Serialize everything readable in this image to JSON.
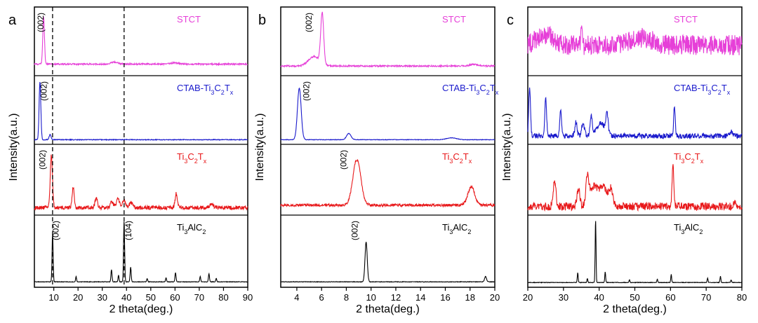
{
  "chart_data": [
    {
      "type": "line",
      "panel_label": "a",
      "xlabel": "2 theta(deg.)",
      "ylabel": "Intensity(a.u.)",
      "xlim": [
        2,
        90
      ],
      "xticks": [
        10,
        20,
        30,
        40,
        50,
        60,
        70,
        80,
        90
      ],
      "grid": false,
      "dashed_lines_x": [
        9.5,
        39
      ],
      "series": [
        {
          "name": "STCT",
          "color": "#e63fd8",
          "label_html": "STCT",
          "baseline": 0.15,
          "peaks": [
            [
              5.8,
              0.75,
              0.35
            ],
            [
              35,
              0.03,
              1.5
            ],
            [
              60,
              0.02,
              1.5
            ]
          ],
          "noise": 0.012
        },
        {
          "name": "CTAB-Ti3C2Tx",
          "color": "#1a1acc",
          "label_html": "CTAB-Ti<tspan baseline-shift='sub' font-size='9'>3</tspan>C<tspan baseline-shift='sub' font-size='9'>2</tspan>T<tspan baseline-shift='sub' font-size='9'>x</tspan>",
          "baseline": 0.04,
          "peaks": [
            [
              4.3,
              0.92,
              0.35
            ],
            [
              8.5,
              0.08,
              0.4
            ]
          ],
          "noise": 0.006
        },
        {
          "name": "Ti3C2Tx",
          "color": "#e8181a",
          "label_html": "Ti<tspan baseline-shift='sub' font-size='9'>3</tspan>C<tspan baseline-shift='sub' font-size='9'>2</tspan>T<tspan baseline-shift='sub' font-size='9'>x</tspan>",
          "baseline": 0.08,
          "peaks": [
            [
              9.0,
              0.8,
              0.45
            ],
            [
              18,
              0.32,
              0.45
            ],
            [
              27.5,
              0.16,
              0.5
            ],
            [
              34,
              0.1,
              0.6
            ],
            [
              36.5,
              0.14,
              0.6
            ],
            [
              39,
              0.12,
              0.6
            ],
            [
              42,
              0.08,
              0.8
            ],
            [
              60.5,
              0.22,
              0.45
            ],
            [
              75,
              0.05,
              0.8
            ]
          ],
          "noise": 0.03
        },
        {
          "name": "Ti3AlC2",
          "color": "#000000",
          "label_html": "Ti<tspan baseline-shift='sub' font-size='9'>3</tspan>AlC<tspan baseline-shift='sub' font-size='9'>2</tspan>",
          "baseline": 0.05,
          "peaks": [
            [
              9.5,
              0.72,
              0.22
            ],
            [
              19.2,
              0.08,
              0.2
            ],
            [
              33.8,
              0.18,
              0.22
            ],
            [
              36.7,
              0.1,
              0.2
            ],
            [
              39,
              0.92,
              0.22
            ],
            [
              41.7,
              0.22,
              0.22
            ],
            [
              48.5,
              0.05,
              0.2
            ],
            [
              56.3,
              0.06,
              0.2
            ],
            [
              60.2,
              0.14,
              0.22
            ],
            [
              70.4,
              0.08,
              0.2
            ],
            [
              74,
              0.12,
              0.22
            ],
            [
              77,
              0.05,
              0.2
            ]
          ],
          "noise": 0.004
        }
      ],
      "annotations": [
        {
          "text": "(002)",
          "series": 0,
          "x": 5.8
        },
        {
          "text": "(002)",
          "series": 1,
          "x": 7.0
        },
        {
          "text": "(002)",
          "series": 2,
          "x": 6.5
        },
        {
          "text": "(002)",
          "series": 3,
          "x": 12
        },
        {
          "text": "(104)",
          "series": 3,
          "x": 42
        }
      ]
    },
    {
      "type": "line",
      "panel_label": "b",
      "xlabel": "2 theta(deg.)",
      "ylabel": "Intensity(a.u.)",
      "xlim": [
        2.7,
        20
      ],
      "xticks": [
        4,
        6,
        8,
        10,
        12,
        14,
        16,
        18,
        20
      ],
      "grid": false,
      "series": [
        {
          "name": "STCT",
          "color": "#e63fd8",
          "label_html": "STCT",
          "baseline": 0.12,
          "peaks": [
            [
              6.05,
              0.8,
              0.12
            ],
            [
              5.4,
              0.15,
              0.45
            ],
            [
              18.3,
              0.03,
              0.3
            ]
          ],
          "noise": 0.012
        },
        {
          "name": "CTAB-Ti3C2Tx",
          "color": "#1a1acc",
          "label_html": "CTAB-Ti<tspan baseline-shift='sub' font-size='9'>3</tspan>C<tspan baseline-shift='sub' font-size='9'>2</tspan>T<tspan baseline-shift='sub' font-size='9'>x</tspan>",
          "baseline": 0.04,
          "peaks": [
            [
              4.2,
              0.82,
              0.15
            ],
            [
              8.2,
              0.1,
              0.18
            ],
            [
              16.5,
              0.03,
              0.4
            ]
          ],
          "noise": 0.004
        },
        {
          "name": "Ti3C2Tx",
          "color": "#e8181a",
          "label_html": "Ti<tspan baseline-shift='sub' font-size='9'>3</tspan>C<tspan baseline-shift='sub' font-size='9'>2</tspan>T<tspan baseline-shift='sub' font-size='9'>x</tspan>",
          "baseline": 0.12,
          "peaks": [
            [
              8.85,
              0.7,
              0.32
            ],
            [
              18.1,
              0.28,
              0.28
            ]
          ],
          "noise": 0.02
        },
        {
          "name": "Ti3AlC2",
          "color": "#000000",
          "label_html": "Ti<tspan baseline-shift='sub' font-size='9'>3</tspan>AlC<tspan baseline-shift='sub' font-size='9'>2</tspan>",
          "baseline": 0.05,
          "peaks": [
            [
              9.6,
              0.6,
              0.09
            ],
            [
              19.25,
              0.08,
              0.08
            ]
          ],
          "noise": 0.004
        }
      ],
      "annotations": [
        {
          "text": "(002)",
          "series": 0,
          "x": 5.2
        },
        {
          "text": "(002)",
          "series": 1,
          "x": 5.0
        },
        {
          "text": "(002)",
          "series": 2,
          "x": 8.0
        },
        {
          "text": "(002)",
          "series": 3,
          "x": 8.9
        }
      ]
    },
    {
      "type": "line",
      "panel_label": "c",
      "xlabel": "2 theta(deg.)",
      "ylabel": "Intensity(a.u.)",
      "xlim": [
        20,
        80
      ],
      "xticks": [
        20,
        30,
        40,
        50,
        60,
        70,
        80
      ],
      "grid": false,
      "series": [
        {
          "name": "STCT",
          "color": "#e63fd8",
          "label_html": "STCT",
          "baseline": 0.45,
          "peaks": [
            [
              35,
              0.35,
              0.2
            ],
            [
              25,
              0.15,
              2.5
            ],
            [
              52,
              0.12,
              3
            ]
          ],
          "noise": 0.16
        },
        {
          "name": "CTAB-Ti3C2Tx",
          "color": "#1a1acc",
          "label_html": "CTAB-Ti<tspan baseline-shift='sub' font-size='9'>3</tspan>C<tspan baseline-shift='sub' font-size='9'>2</tspan>T<tspan baseline-shift='sub' font-size='9'>x</tspan>",
          "baseline": 0.1,
          "peaks": [
            [
              20.5,
              0.75,
              0.25
            ],
            [
              25,
              0.6,
              0.25
            ],
            [
              29.2,
              0.42,
              0.25
            ],
            [
              33.5,
              0.22,
              0.3
            ],
            [
              35.5,
              0.2,
              0.4
            ],
            [
              37.8,
              0.3,
              0.3
            ],
            [
              40.5,
              0.2,
              1.2
            ],
            [
              42.2,
              0.3,
              0.3
            ],
            [
              61.1,
              0.5,
              0.2
            ],
            [
              77,
              0.08,
              0.3
            ]
          ],
          "noise": 0.04
        },
        {
          "name": "Ti3C2Tx",
          "color": "#e8181a",
          "label_html": "Ti<tspan baseline-shift='sub' font-size='9'>3</tspan>C<tspan baseline-shift='sub' font-size='9'>2</tspan>T<tspan baseline-shift='sub' font-size='9'>x</tspan>",
          "baseline": 0.1,
          "peaks": [
            [
              27.5,
              0.42,
              0.35
            ],
            [
              34.2,
              0.28,
              0.4
            ],
            [
              36.7,
              0.42,
              0.4
            ],
            [
              38.5,
              0.3,
              1.2
            ],
            [
              41.2,
              0.3,
              1.0
            ],
            [
              43.3,
              0.25,
              0.5
            ],
            [
              60.7,
              0.62,
              0.25
            ],
            [
              78,
              0.05,
              0.3
            ]
          ],
          "noise": 0.06
        },
        {
          "name": "Ti3AlC2",
          "color": "#000000",
          "label_html": "Ti<tspan baseline-shift='sub' font-size='9'>3</tspan>AlC<tspan baseline-shift='sub' font-size='9'>2</tspan>",
          "baseline": 0.04,
          "peaks": [
            [
              34,
              0.15,
              0.12
            ],
            [
              36.7,
              0.06,
              0.12
            ],
            [
              39,
              0.95,
              0.12
            ],
            [
              41.7,
              0.16,
              0.12
            ],
            [
              48.5,
              0.04,
              0.12
            ],
            [
              56.3,
              0.05,
              0.12
            ],
            [
              60.2,
              0.12,
              0.12
            ],
            [
              70.4,
              0.07,
              0.12
            ],
            [
              74,
              0.1,
              0.12
            ],
            [
              77,
              0.04,
              0.12
            ]
          ],
          "noise": 0.004
        }
      ],
      "annotations": []
    }
  ]
}
